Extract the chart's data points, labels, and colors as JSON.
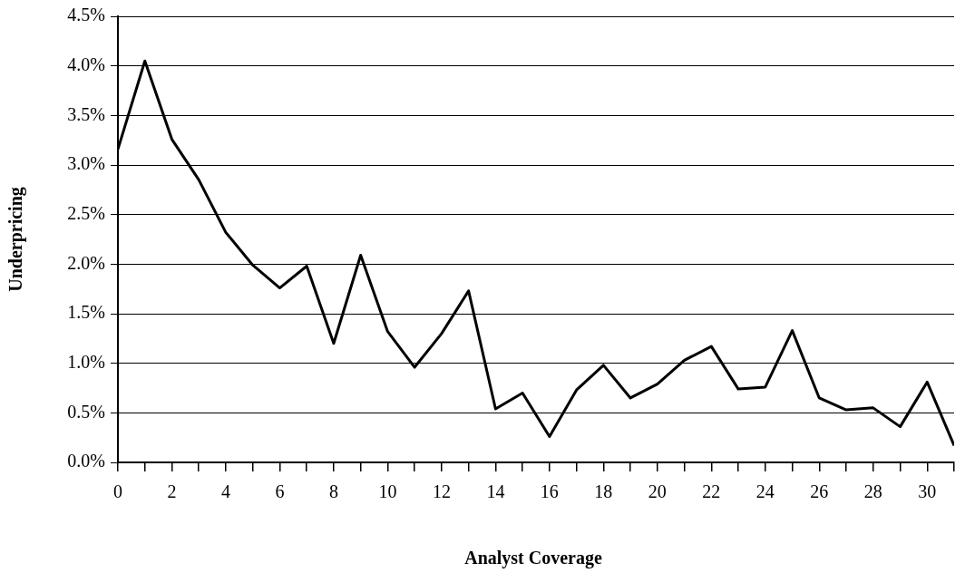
{
  "chart_data": {
    "type": "line",
    "xlabel": "Analyst Coverage",
    "ylabel": "Underpricing",
    "x": [
      0,
      1,
      2,
      3,
      4,
      5,
      6,
      7,
      8,
      9,
      10,
      11,
      12,
      13,
      14,
      15,
      16,
      17,
      18,
      19,
      20,
      21,
      22,
      23,
      24,
      25,
      26,
      27,
      28,
      29,
      30,
      31
    ],
    "series": [
      {
        "color": "#000000",
        "values": [
          3.16,
          4.05,
          3.26,
          2.85,
          2.32,
          1.99,
          1.76,
          1.98,
          1.2,
          2.09,
          1.32,
          0.96,
          1.3,
          1.73,
          0.54,
          0.7,
          0.26,
          0.73,
          0.98,
          0.65,
          0.79,
          1.03,
          1.17,
          0.74,
          0.76,
          1.33,
          0.65,
          0.53,
          0.55,
          0.36,
          0.81,
          0.17
        ]
      }
    ],
    "xlim": [
      0,
      31
    ],
    "xticks": [
      0,
      {
        "value": 1,
        "label": null
      },
      2,
      {
        "value": 3,
        "label": null
      },
      4,
      {
        "value": 5,
        "label": null
      },
      6,
      {
        "value": 7,
        "label": null
      },
      8,
      {
        "value": 9,
        "label": null
      },
      10,
      {
        "value": 11,
        "label": null
      },
      12,
      {
        "value": 13,
        "label": null
      },
      14,
      {
        "value": 15,
        "label": null
      },
      16,
      {
        "value": 17,
        "label": null
      },
      18,
      {
        "value": 19,
        "label": null
      },
      20,
      {
        "value": 21,
        "label": null
      },
      22,
      {
        "value": 23,
        "label": null
      },
      24,
      {
        "value": 25,
        "label": null
      },
      26,
      {
        "value": 27,
        "label": null
      },
      28,
      {
        "value": 29,
        "label": null
      },
      30,
      {
        "value": 31,
        "label": null
      }
    ],
    "ylim": [
      0,
      4.5
    ],
    "yticks": [
      {
        "value": 0,
        "label": "0.0%"
      },
      {
        "value": 0.5,
        "label": "0.5%"
      },
      {
        "value": 1,
        "label": "1.0%"
      },
      {
        "value": 1.5,
        "label": "1.5%"
      },
      {
        "value": 2,
        "label": "2.0%"
      },
      {
        "value": 2.5,
        "label": "2.5%"
      },
      {
        "value": 3,
        "label": "3.0%"
      },
      {
        "value": 3.5,
        "label": "3.5%"
      },
      {
        "value": 4,
        "label": "4.0%"
      },
      {
        "value": 4.5,
        "label": "4.5%"
      }
    ],
    "grid": "y",
    "legend": false,
    "marker": "none",
    "line_style": "solid"
  }
}
